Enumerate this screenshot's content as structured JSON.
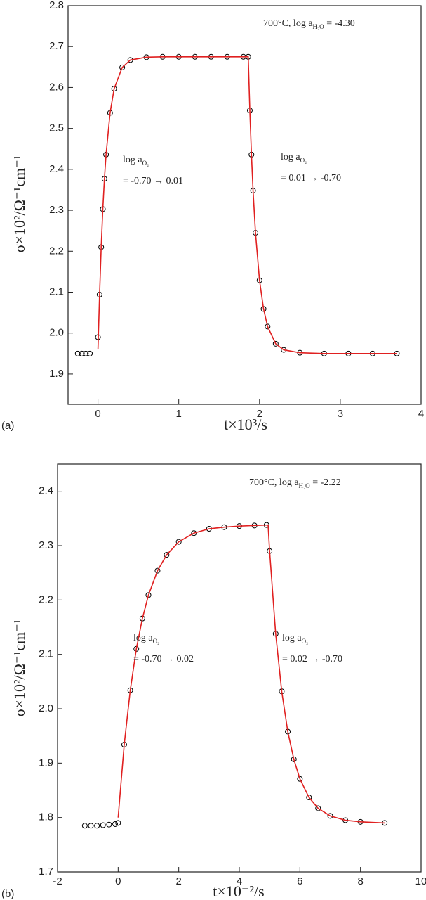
{
  "chart_data": [
    {
      "type": "scatter",
      "panel_label": "(a)",
      "x_label": "t×10³/s",
      "y_label": "σ×10²/Ω⁻¹cm⁻¹",
      "xlim": [
        -0.37,
        4
      ],
      "ylim": [
        1.826,
        2.8
      ],
      "xticks": [
        0,
        1,
        2,
        3,
        4
      ],
      "yticks": [
        1.9,
        {
          "value": 2,
          "label": "2.0"
        },
        2.1,
        2.2,
        2.3,
        2.4,
        2.5,
        2.6,
        2.7,
        2.8
      ],
      "annotations": [
        {
          "text": "700°C, log a",
          "sub": "H₂O",
          "after": " = -4.30"
        },
        {
          "text": "log a",
          "sub": "O₂",
          "line2": "= -0.70 → 0.01"
        },
        {
          "text": "log a",
          "sub": "O₂",
          "line2": "= 0.01 → -0.70"
        }
      ],
      "series": [
        {
          "style": "markers",
          "color": "#000000",
          "x": [
            -0.25,
            -0.2,
            -0.15,
            -0.1,
            0,
            0.02,
            0.04,
            0.06,
            0.08,
            0.1,
            0.15,
            0.2,
            0.3,
            0.4,
            0.6,
            0.8,
            1.0,
            1.2,
            1.4,
            1.6,
            1.8,
            1.86,
            1.88,
            1.9,
            1.92,
            1.95,
            2.0,
            2.05,
            2.1,
            2.2,
            2.3,
            2.5,
            2.8,
            3.1,
            3.4,
            3.7
          ],
          "values": [
            1.95,
            1.95,
            1.95,
            1.95,
            1.99,
            2.094,
            2.21,
            2.303,
            2.377,
            2.436,
            2.538,
            2.597,
            2.649,
            2.667,
            2.674,
            2.675,
            2.675,
            2.675,
            2.675,
            2.675,
            2.675,
            2.675,
            2.544,
            2.436,
            2.348,
            2.245,
            2.129,
            2.059,
            2.016,
            1.974,
            1.959,
            1.952,
            1.95,
            1.95,
            1.95,
            1.95
          ]
        },
        {
          "style": "line",
          "color": "#e02020",
          "x": [
            0,
            0.02,
            0.04,
            0.06,
            0.08,
            0.1,
            0.15,
            0.2,
            0.3,
            0.4,
            0.6,
            0.8,
            1.0,
            1.4,
            1.8,
            1.86,
            1.88,
            1.9,
            1.92,
            1.95,
            2.0,
            2.05,
            2.1,
            2.2,
            2.3,
            2.5,
            2.8,
            3.1,
            3.4,
            3.7
          ],
          "values": [
            1.96,
            2.094,
            2.21,
            2.303,
            2.377,
            2.436,
            2.538,
            2.597,
            2.649,
            2.667,
            2.674,
            2.675,
            2.675,
            2.675,
            2.675,
            2.675,
            2.544,
            2.436,
            2.348,
            2.245,
            2.129,
            2.059,
            2.016,
            1.974,
            1.959,
            1.952,
            1.95,
            1.95,
            1.95,
            1.95
          ]
        }
      ]
    },
    {
      "type": "scatter",
      "panel_label": "(b)",
      "x_label": "t×10⁻²/s",
      "y_label": "σ×10²/Ω⁻¹cm⁻¹",
      "xlim": [
        -2,
        10
      ],
      "ylim": [
        1.7,
        2.45
      ],
      "xticks": [
        -2,
        0,
        2,
        4,
        6,
        8,
        10
      ],
      "yticks": [
        1.7,
        1.8,
        1.9,
        {
          "value": 2,
          "label": "2.0"
        },
        2.1,
        2.2,
        2.3,
        2.4
      ],
      "annotations": [
        {
          "text": "700°C, log a",
          "sub": "H₂O",
          "after": " = -2.22"
        },
        {
          "text": "log a",
          "sub": "O₂",
          "line2": "= -0.70 → 0.02"
        },
        {
          "text": "log a",
          "sub": "O₂",
          "line2": "= 0.02 → -0.70"
        }
      ],
      "series": [
        {
          "style": "markers",
          "color": "#000000",
          "x": [
            -1.1,
            -0.9,
            -0.7,
            -0.5,
            -0.3,
            -0.1,
            0,
            0.2,
            0.4,
            0.6,
            0.8,
            1.0,
            1.3,
            1.6,
            2.0,
            2.5,
            3.0,
            3.5,
            4.0,
            4.5,
            4.9,
            5.0,
            5.2,
            5.4,
            5.6,
            5.8,
            6.0,
            6.3,
            6.6,
            7.0,
            7.5,
            8.0,
            8.8
          ],
          "values": [
            1.785,
            1.785,
            1.785,
            1.786,
            1.787,
            1.788,
            1.79,
            1.934,
            2.034,
            2.11,
            2.166,
            2.209,
            2.254,
            2.283,
            2.307,
            2.323,
            2.331,
            2.334,
            2.336,
            2.337,
            2.338,
            2.29,
            2.138,
            2.032,
            1.958,
            1.907,
            1.871,
            1.837,
            1.817,
            1.803,
            1.795,
            1.792,
            1.79
          ]
        },
        {
          "style": "line",
          "color": "#e02020",
          "x": [
            0,
            0.2,
            0.4,
            0.6,
            0.8,
            1.0,
            1.3,
            1.6,
            2.0,
            2.5,
            3.0,
            3.5,
            4.0,
            4.5,
            4.95,
            5.0,
            5.2,
            5.4,
            5.6,
            5.8,
            6.0,
            6.3,
            6.6,
            7.0,
            7.5,
            8.0,
            8.8
          ],
          "values": [
            1.8,
            1.934,
            2.034,
            2.11,
            2.166,
            2.209,
            2.254,
            2.283,
            2.307,
            2.323,
            2.331,
            2.334,
            2.336,
            2.337,
            2.338,
            2.29,
            2.138,
            2.032,
            1.958,
            1.907,
            1.871,
            1.837,
            1.817,
            1.803,
            1.795,
            1.792,
            1.79
          ]
        }
      ]
    }
  ]
}
